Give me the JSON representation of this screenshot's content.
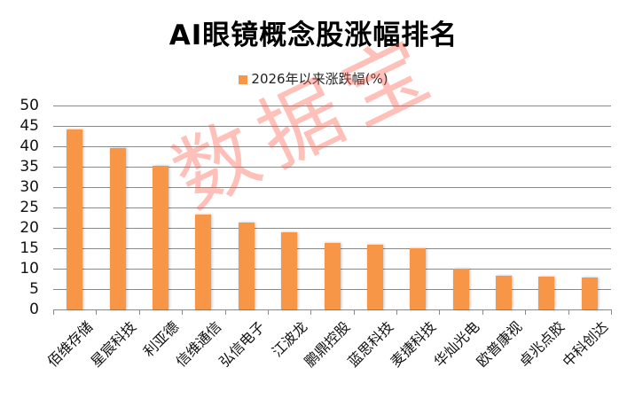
{
  "chart_data": {
    "type": "bar",
    "title": "AI眼镜概念股涨幅排名",
    "xlabel": "",
    "ylabel": "",
    "ylim": [
      0,
      50
    ],
    "yticks": [
      0,
      5,
      10,
      15,
      20,
      25,
      30,
      35,
      40,
      45,
      50
    ],
    "grid": true,
    "legend_position": "top",
    "categories": [
      "佰维存储",
      "星宸科技",
      "利亚德",
      "信维通信",
      "弘信电子",
      "江波龙",
      "鹏鼎控股",
      "蓝思科技",
      "麦捷科技",
      "华灿光电",
      "欧普康视",
      "卓兆点胶",
      "中科创达"
    ],
    "series": [
      {
        "name": "2026年以来涨跌幅(%)",
        "color": "#f79646",
        "values": [
          44.1,
          39.6,
          35.2,
          23.3,
          21.3,
          18.9,
          16.3,
          15.9,
          15.0,
          10.1,
          8.3,
          8.0,
          7.8
        ]
      }
    ],
    "watermark": "数据宝"
  }
}
